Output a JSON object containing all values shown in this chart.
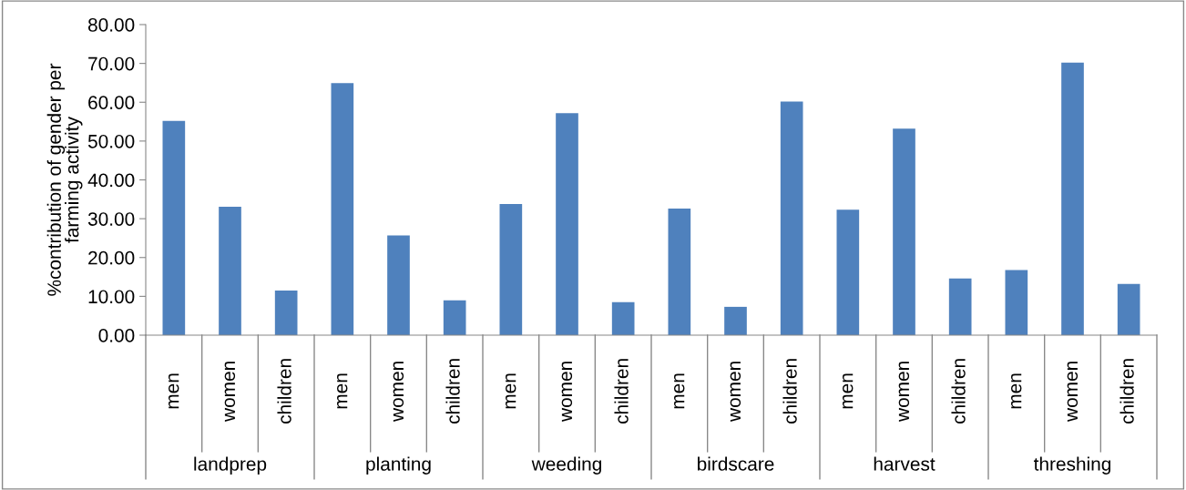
{
  "chart_data": {
    "type": "bar",
    "ylabel": "%contribution of gender per\nfarming activity",
    "categories": [
      "men",
      "women",
      "children",
      "men",
      "women",
      "children",
      "men",
      "women",
      "children",
      "men",
      "women",
      "children",
      "men",
      "women",
      "children",
      "men",
      "women",
      "children"
    ],
    "values": [
      55.2,
      33.1,
      11.5,
      64.9,
      25.7,
      9.0,
      33.8,
      57.2,
      8.5,
      32.6,
      7.3,
      60.2,
      32.3,
      53.2,
      14.6,
      16.8,
      70.2,
      13.2
    ],
    "color": "#4f81bd",
    "annotations": [
      "landprep",
      "planting",
      "weeding",
      "birdscare",
      "harvest",
      "threshing"
    ],
    "ylim": [
      0,
      80
    ],
    "yticks": [
      {
        "value": 0,
        "label": "0.00"
      },
      {
        "value": 10,
        "label": "10.00"
      },
      {
        "value": 20,
        "label": "20.00"
      },
      {
        "value": 30,
        "label": "30.00"
      },
      {
        "value": 40,
        "label": "40.00"
      },
      {
        "value": 50,
        "label": "50.00"
      },
      {
        "value": 60,
        "label": "60.00"
      },
      {
        "value": 70,
        "label": "70.00"
      },
      {
        "value": 80,
        "label": "80.00"
      }
    ],
    "grid": false
  }
}
